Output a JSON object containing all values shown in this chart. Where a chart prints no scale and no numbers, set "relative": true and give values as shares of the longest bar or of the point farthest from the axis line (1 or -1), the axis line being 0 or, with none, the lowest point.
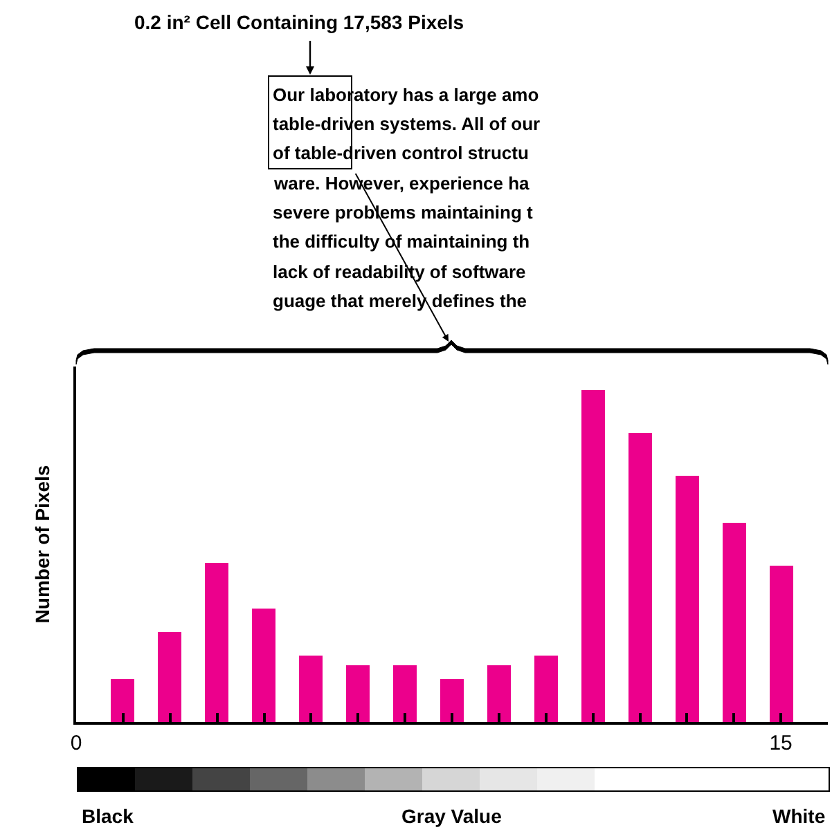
{
  "chart_data": {
    "type": "bar",
    "title": "0.2 in² Cell Containing 17,583 Pixels",
    "xlabel": "Gray Value",
    "ylabel": "Number of Pixels",
    "x": [
      1,
      2,
      3,
      4,
      5,
      6,
      7,
      8,
      9,
      10,
      11,
      12,
      13,
      14,
      15
    ],
    "values": [
      0.13,
      0.27,
      0.48,
      0.34,
      0.2,
      0.17,
      0.17,
      0.13,
      0.17,
      0.2,
      1,
      0.87,
      0.74,
      0.6,
      0.47
    ],
    "color": "#ec008c",
    "relative": true,
    "xlim": [
      0,
      16
    ],
    "xticks": [
      0,
      {
        "value": 1,
        "label": null
      },
      {
        "value": 2,
        "label": null
      },
      {
        "value": 3,
        "label": null
      },
      {
        "value": 4,
        "label": null
      },
      {
        "value": 5,
        "label": null
      },
      {
        "value": 6,
        "label": null
      },
      {
        "value": 7,
        "label": null
      },
      {
        "value": 8,
        "label": null
      },
      {
        "value": 9,
        "label": null
      },
      {
        "value": 10,
        "label": null
      },
      {
        "value": 11,
        "label": null
      },
      {
        "value": 12,
        "label": null
      },
      {
        "value": 13,
        "label": null
      },
      {
        "value": 14,
        "label": null
      },
      15
    ],
    "tick_labels": "x",
    "annotations": [
      "Our laboratory has a large amo",
      "table-driven systems. All of our",
      "of table-driven control structu",
      "ware. However, experience ha",
      "severe problems maintaining t",
      "the difficulty of maintaining th",
      "lack of readability of software",
      "guage that merely defines the",
      "Black",
      "White"
    ]
  }
}
